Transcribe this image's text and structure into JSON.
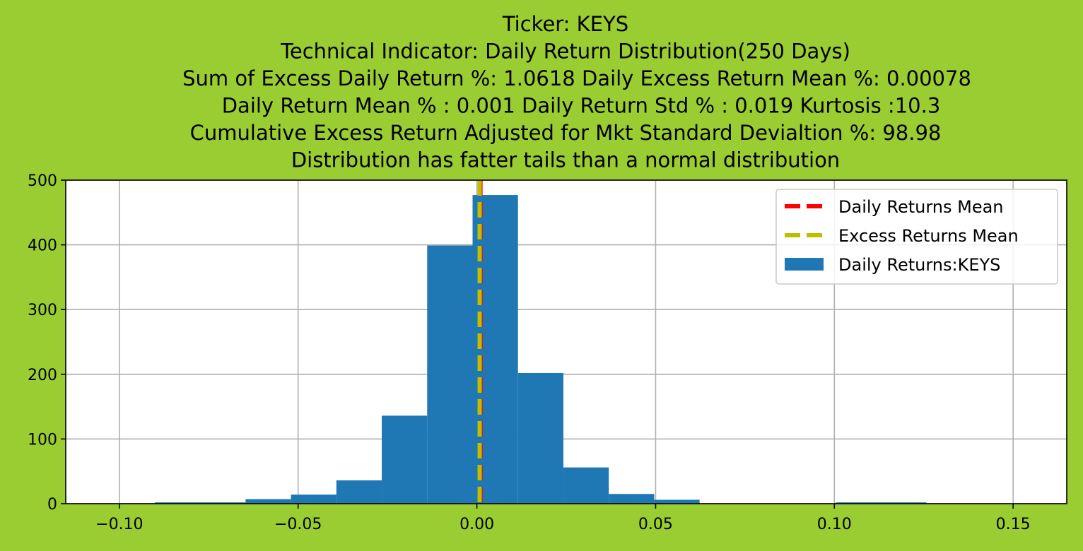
{
  "chart_data": {
    "type": "bar",
    "title_lines": [
      "Ticker: KEYS",
      "Technical Indicator: Daily Return Distribution(250 Days)",
      "Sum of Excess Daily Return %: 1.0618   Daily Excess Return Mean %: 0.00078",
      "Daily Return Mean % : 0.001    Daily Return Std % : 0.019  Kurtosis :10.3",
      "Cumulative Excess Return Adjusted for Mkt Standard Devialtion %: 98.98",
      "Distribution has fatter tails than a normal distribution"
    ],
    "xlabel": "",
    "ylabel": "",
    "xlim": [
      -0.115,
      0.165
    ],
    "ylim": [
      0,
      500
    ],
    "x_ticks": [
      -0.1,
      -0.05,
      0.0,
      0.05,
      0.1,
      0.15
    ],
    "x_tick_labels": [
      "−0.10",
      "−0.05",
      "0.00",
      "0.05",
      "0.10",
      "0.15"
    ],
    "y_ticks": [
      0,
      100,
      200,
      300,
      400,
      500
    ],
    "y_tick_labels": [
      "0",
      "100",
      "200",
      "300",
      "400",
      "500"
    ],
    "grid": true,
    "legend_position": "top-right",
    "bins": [
      {
        "x0": -0.0901,
        "x1": -0.0774,
        "count": 2
      },
      {
        "x0": -0.0774,
        "x1": -0.0647,
        "count": 2
      },
      {
        "x0": -0.0647,
        "x1": -0.052,
        "count": 7
      },
      {
        "x0": -0.052,
        "x1": -0.0393,
        "count": 14
      },
      {
        "x0": -0.0393,
        "x1": -0.0266,
        "count": 36
      },
      {
        "x0": -0.0266,
        "x1": -0.0139,
        "count": 136
      },
      {
        "x0": -0.0139,
        "x1": -0.0012,
        "count": 399
      },
      {
        "x0": -0.0012,
        "x1": 0.0115,
        "count": 477
      },
      {
        "x0": 0.0115,
        "x1": 0.0242,
        "count": 202
      },
      {
        "x0": 0.0242,
        "x1": 0.0369,
        "count": 56
      },
      {
        "x0": 0.0369,
        "x1": 0.0496,
        "count": 15
      },
      {
        "x0": 0.0496,
        "x1": 0.0623,
        "count": 6
      },
      {
        "x0": 0.1004,
        "x1": 0.1131,
        "count": 2
      },
      {
        "x0": 0.1131,
        "x1": 0.1258,
        "count": 2
      }
    ],
    "daily_returns_mean": 0.001,
    "excess_returns_mean": 0.00078,
    "series": [
      {
        "name": "Daily Returns Mean",
        "kind": "vline",
        "color": "#ff0000"
      },
      {
        "name": "Excess Returns Mean",
        "kind": "vline",
        "color": "#bfbf00"
      },
      {
        "name": "Daily Returns:KEYS",
        "kind": "hist",
        "color": "#1f77b4"
      }
    ]
  }
}
